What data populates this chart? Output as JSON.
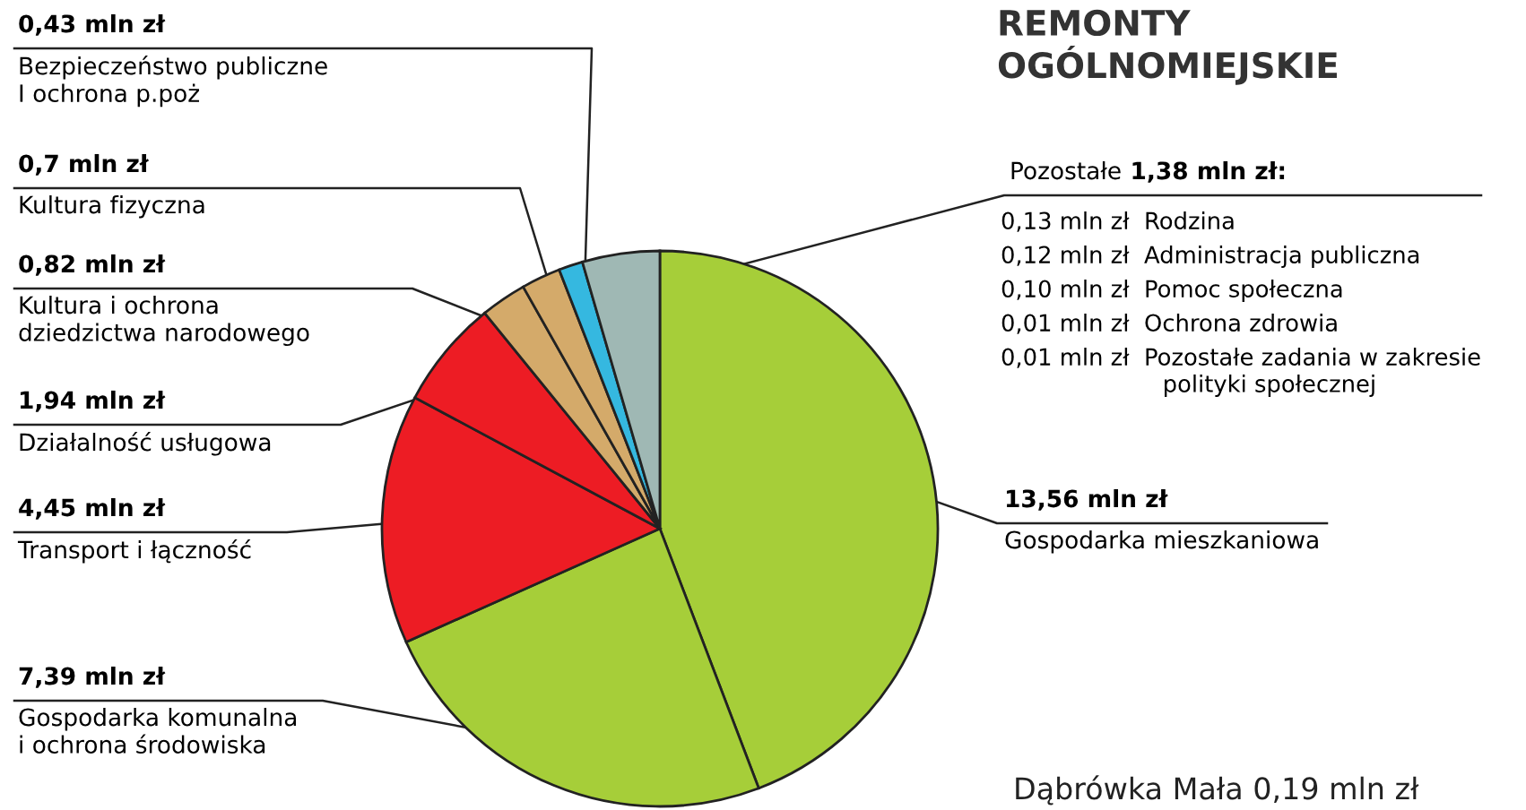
{
  "chart_data": {
    "type": "pie",
    "title": "REMONTY\nOGÓLNOMIEJSKIE",
    "categories": [
      "Gospodarka mieszkaniowa",
      "Gospodarka komunalna\ni ochrona środowiska",
      "Transport i łączność",
      "Działalność usługowa",
      "Kultura i ochrona\ndziedzictwa narodowego",
      "Kultura fizyczna",
      "Bezpieczeństwo publiczne\nI ochrona p.poż",
      "Pozostałe"
    ],
    "values": [
      13.56,
      7.39,
      4.45,
      1.94,
      0.82,
      0.7,
      0.43,
      1.38
    ],
    "value_labels": [
      "13,56 mln zł",
      "7,39 mln zł",
      "4,45 mln zł",
      "1,94 mln zł",
      "0,82 mln zł",
      "0,7 mln zł",
      "0,43 mln zł",
      "1,38 mln zł:"
    ],
    "colors": [
      "#a6ce39",
      "#a6ce39",
      "#ed1c24",
      "#ed1c24",
      "#d4aa6a",
      "#d4aa6a",
      "#35b8e0",
      "#9fb8b4"
    ],
    "annotations": [
      "0,13 mln zł  Rodzina",
      "0,12 mln zł  Administracja publiczna",
      "0,10 mln zł  Pomoc społeczna",
      "0,01 mln zł  Ochrona zdrowia",
      "0,01 mln zł  Pozostałe zadania w zakresie\n                      polityki społecznej",
      "Dąbrówka Mała 0,19 mln zł"
    ]
  }
}
